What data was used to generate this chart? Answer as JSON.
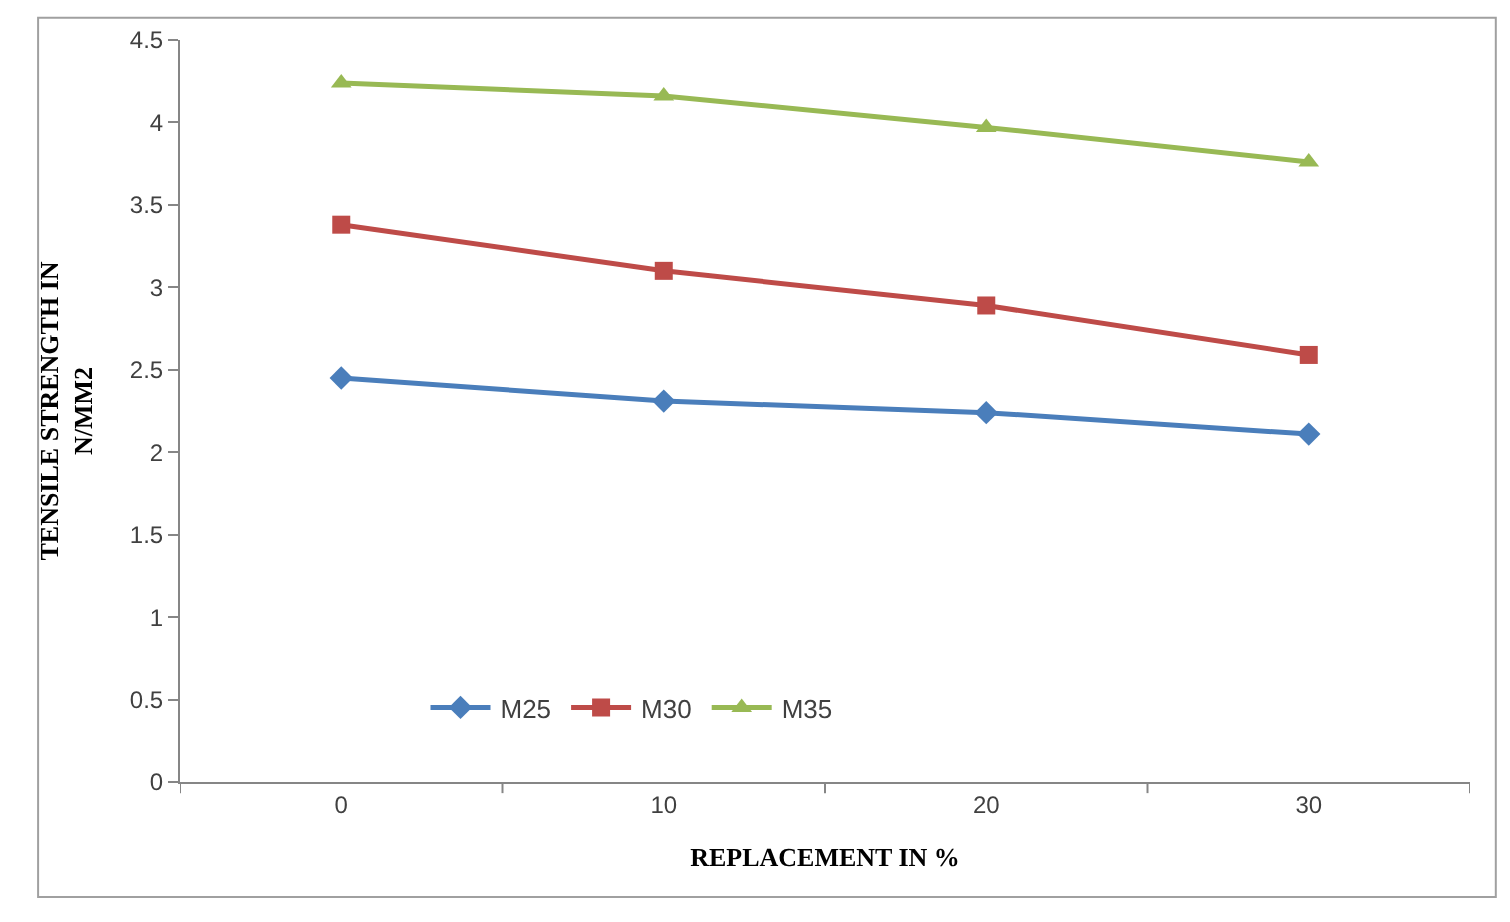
{
  "chart_data": {
    "type": "line",
    "xlabel": "REPLACEMENT IN %",
    "ylabel": "TENSILE STRENGTH IN N/MM2",
    "categories": [
      "0",
      "10",
      "20",
      "30"
    ],
    "ylim": [
      0,
      4.5
    ],
    "yticks": [
      0,
      0.5,
      1,
      1.5,
      2,
      2.5,
      3,
      3.5,
      4,
      4.5
    ],
    "grid": false,
    "legend": "bottom",
    "series": [
      {
        "name": "M25",
        "color": "#4a7ebb",
        "marker": "diamond",
        "values": [
          2.45,
          2.31,
          2.24,
          2.11
        ]
      },
      {
        "name": "M30",
        "color": "#be4b48",
        "marker": "square",
        "values": [
          3.38,
          3.1,
          2.89,
          2.59
        ]
      },
      {
        "name": "M35",
        "color": "#98b954",
        "marker": "triangle",
        "values": [
          4.24,
          4.16,
          3.97,
          3.76
        ]
      }
    ]
  }
}
